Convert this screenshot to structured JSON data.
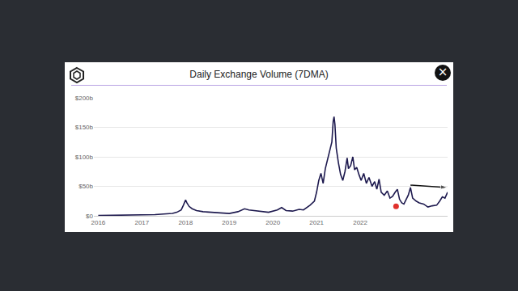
{
  "page": {
    "close_button": "×"
  },
  "chart_data": {
    "type": "line",
    "title": "Daily Exchange Volume (7DMA)",
    "xlim": [
      2015.9,
      2024.0
    ],
    "xticks": [
      2016,
      2017,
      2018,
      2019,
      2020,
      2021,
      2022
    ],
    "ylim": [
      0,
      200
    ],
    "yticks": [
      {
        "value": 0,
        "label": "$0"
      },
      {
        "value": 50,
        "label": "$50b"
      },
      {
        "value": 100,
        "label": "$100b"
      },
      {
        "value": 150,
        "label": "$150b"
      },
      {
        "value": 200,
        "label": "$200b"
      }
    ],
    "grid": true,
    "series": [
      {
        "type": "line",
        "color": "#1e1a4f",
        "x": [
          2016.0,
          2016.5,
          2017.0,
          2017.3,
          2017.5,
          2017.7,
          2017.8,
          2017.9,
          2017.95,
          2018.0,
          2018.03,
          2018.08,
          2018.15,
          2018.25,
          2018.4,
          2018.6,
          2018.8,
          2019.0,
          2019.2,
          2019.35,
          2019.45,
          2019.55,
          2019.7,
          2019.9,
          2020.1,
          2020.2,
          2020.3,
          2020.45,
          2020.6,
          2020.7,
          2020.85,
          2020.95,
          2021.0,
          2021.05,
          2021.1,
          2021.15,
          2021.2,
          2021.25,
          2021.3,
          2021.35,
          2021.38,
          2021.4,
          2021.42,
          2021.45,
          2021.5,
          2021.55,
          2021.6,
          2021.65,
          2021.7,
          2021.73,
          2021.78,
          2021.83,
          2021.87,
          2021.92,
          2021.97,
          2022.02,
          2022.08,
          2022.14,
          2022.2,
          2022.27,
          2022.33,
          2022.38,
          2022.43,
          2022.48,
          2022.55,
          2022.62,
          2022.68,
          2022.74,
          2022.8,
          2022.85,
          2022.9,
          2022.95,
          2023.0,
          2023.05,
          2023.1,
          2023.15,
          2023.2,
          2023.28,
          2023.35,
          2023.45,
          2023.55,
          2023.65,
          2023.75,
          2023.82,
          2023.88,
          2023.94,
          2024.0
        ],
        "values": [
          0.5,
          0.8,
          1,
          2,
          3,
          4,
          6,
          10,
          18,
          27,
          22,
          16,
          12,
          9,
          7,
          6,
          5,
          4,
          7,
          12,
          10,
          9,
          8,
          6,
          10,
          14,
          9,
          8,
          11,
          10,
          18,
          25,
          40,
          60,
          72,
          55,
          80,
          95,
          110,
          125,
          160,
          168,
          155,
          115,
          90,
          70,
          60,
          75,
          98,
          80,
          85,
          100,
          78,
          82,
          70,
          60,
          72,
          55,
          65,
          50,
          58,
          45,
          62,
          40,
          35,
          42,
          30,
          33,
          40,
          45,
          28,
          22,
          20,
          28,
          35,
          48,
          30,
          25,
          22,
          20,
          15,
          17,
          18,
          25,
          32,
          30,
          40
        ]
      },
      {
        "type": "scatter",
        "marker": "circle",
        "color": "#e0312c",
        "x": [
          2022.82
        ],
        "values": [
          16
        ]
      },
      {
        "type": "line",
        "marker": "arrow",
        "color": "#111111",
        "x": [
          2023.15,
          2024.0
        ],
        "values": [
          52,
          48
        ]
      }
    ]
  }
}
